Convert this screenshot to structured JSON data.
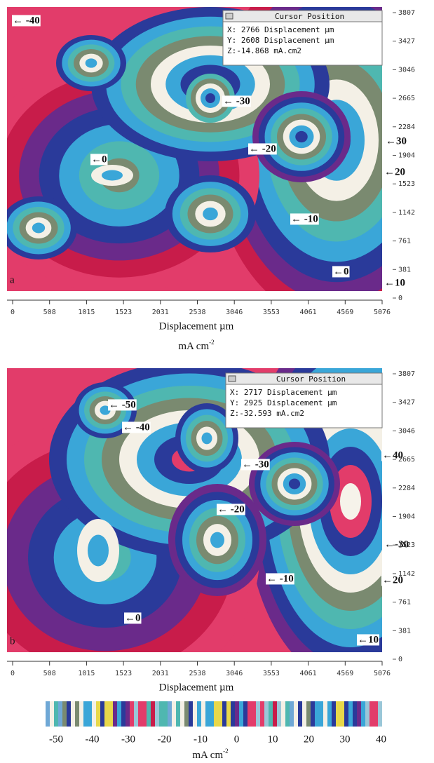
{
  "panels": [
    {
      "label": "a",
      "cursor": {
        "title": "Cursor Position",
        "x": "X: 2766 Displacement µm",
        "y": "Y: 2608 Displacement µm",
        "z": "Z:-14.868  mA.cm2"
      },
      "annotations": [
        "← -40",
        "← -30",
        "← -20",
        "←0",
        "←30",
        "←20",
        "← -10",
        "←0",
        "←10"
      ],
      "xticks": [
        "0",
        "508",
        "1015",
        "1523",
        "2031",
        "2538",
        "3046",
        "3553",
        "4061",
        "4569",
        "5076"
      ],
      "yticks": [
        "3807",
        "3427",
        "3046",
        "2665",
        "2284",
        "1904",
        "1523",
        "1142",
        "761",
        "381",
        "0"
      ],
      "xlabel": "Displacement µm"
    },
    {
      "label": "b",
      "cursor": {
        "title": "Cursor Position",
        "x": "X: 2717 Displacement µm",
        "y": "Y: 2925 Displacement µm",
        "z": "Z:-32.593  mA.cm2"
      },
      "annotations": [
        "← -50",
        "← -40",
        "← -30",
        "←40",
        "← -20",
        "←-30",
        "←20",
        "← -10",
        "←0",
        "←10"
      ],
      "xticks": [
        "0",
        "508",
        "1015",
        "1523",
        "2031",
        "2538",
        "3046",
        "3553",
        "4061",
        "4569",
        "5076"
      ],
      "yticks": [
        "3807",
        "3427",
        "3046",
        "2665",
        "2284",
        "1904",
        "1523",
        "1142",
        "761",
        "381",
        "0"
      ],
      "xlabel": "Displacement µm"
    }
  ],
  "unit_label": {
    "base": "mA cm",
    "exp": "-2"
  },
  "colorbar": {
    "labels": [
      "-50",
      "-40",
      "-30",
      "-20",
      "-10",
      "0",
      "10",
      "20",
      "30",
      "40"
    ],
    "unit": {
      "base": "mA cm",
      "exp": "-2"
    }
  }
}
